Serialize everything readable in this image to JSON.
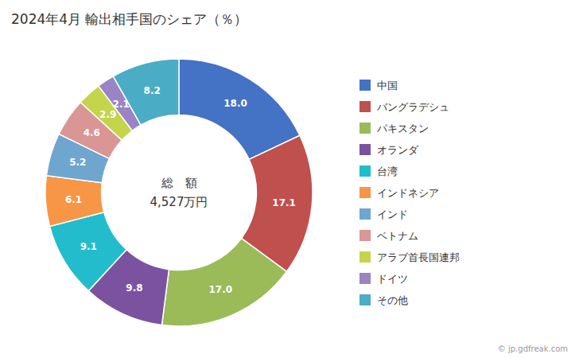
{
  "chart_data": {
    "type": "donut",
    "title": "2024年4月 輸出相手国のシェア（％）",
    "center_text": [
      "総　額",
      "4,527万円"
    ],
    "annotations": [
      "© jp.gdfreak.com"
    ],
    "categories": [
      "中国",
      "バングラデシュ",
      "パキスタン",
      "オランダ",
      "台湾",
      "インドネシア",
      "インド",
      "ベトナム",
      "アラブ首長国連邦",
      "ドイツ",
      "その他"
    ],
    "values": [
      18.0,
      17.1,
      17.0,
      9.8,
      9.1,
      6.1,
      5.2,
      4.6,
      2.9,
      2.1,
      8.2
    ],
    "value_labels": [
      "18.0",
      "17.1",
      "17.0",
      "9.8",
      "9.1",
      "6.1",
      "5.2",
      "4.6",
      "2.9",
      "2.1",
      "8.2"
    ],
    "colors": [
      "#4472C4",
      "#C0504D",
      "#9BBB59",
      "#7B52A0",
      "#23BCCD",
      "#F79646",
      "#6EA6D0",
      "#D99694",
      "#C4D44B",
      "#9B84C4",
      "#4BACC6"
    ],
    "data_labels": true,
    "legend": "right"
  }
}
